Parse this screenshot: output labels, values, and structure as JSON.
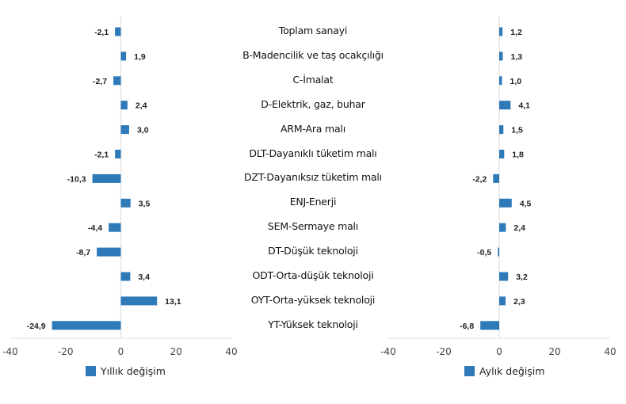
{
  "chart_data": [
    {
      "type": "bar",
      "orientation": "horizontal",
      "title": "",
      "categories": [
        "Toplam sanayi",
        "B-Madencilik ve taş ocakçılığı",
        "C-İmalat",
        "D-Elektrik, gaz, buhar",
        "ARM-Ara malı",
        "DLT-Dayanıklı tüketim malı",
        "DZT-Dayanıksız tüketim malı",
        "ENJ-Enerji",
        "SEM-Sermaye malı",
        "DT-Düşük teknoloji",
        "ODT-Orta-düşük teknoloji",
        "OYT-Orta-yüksek teknoloji",
        "YT-Yüksek teknoloji"
      ],
      "series": [
        {
          "name": "Yıllık değişim",
          "color": "#2e7ab8",
          "values": [
            -2.1,
            1.9,
            -2.7,
            2.4,
            3.0,
            -2.1,
            -10.3,
            3.5,
            -4.4,
            -8.7,
            3.4,
            13.1,
            -24.9
          ],
          "labels": [
            "-2,1",
            "1,9",
            "-2,7",
            "2,4",
            "3,0",
            "-2,1",
            "-10,3",
            "3,5",
            "-4,4",
            "-8,7",
            "3,4",
            "13,1",
            "-24,9"
          ]
        }
      ],
      "xlim": [
        -40,
        40
      ],
      "xticks": [
        "-40",
        "-20",
        "0",
        "20",
        "40"
      ],
      "grid": false,
      "legend": "bottom-center"
    },
    {
      "type": "bar",
      "orientation": "horizontal",
      "title": "",
      "categories": [
        "Toplam sanayi",
        "B-Madencilik ve taş ocakçılığı",
        "C-İmalat",
        "D-Elektrik, gaz, buhar",
        "ARM-Ara malı",
        "DLT-Dayanıklı tüketim malı",
        "DZT-Dayanıksız tüketim malı",
        "ENJ-Enerji",
        "SEM-Sermaye malı",
        "DT-Düşük teknoloji",
        "ODT-Orta-düşük teknoloji",
        "OYT-Orta-yüksek teknoloji",
        "YT-Yüksek teknoloji"
      ],
      "series": [
        {
          "name": "Aylık değişim",
          "color": "#2e7ab8",
          "values": [
            1.2,
            1.3,
            1.0,
            4.1,
            1.5,
            1.8,
            -2.2,
            4.5,
            2.4,
            -0.5,
            3.2,
            2.3,
            -6.8
          ],
          "labels": [
            "1,2",
            "1,3",
            "1,0",
            "4,1",
            "1,5",
            "1,8",
            "-2,2",
            "4,5",
            "2,4",
            "-0,5",
            "3,2",
            "2,3",
            "-6,8"
          ]
        }
      ],
      "xlim": [
        -40,
        40
      ],
      "xticks": [
        "-40",
        "-20",
        "0",
        "20",
        "40"
      ],
      "grid": false,
      "legend": "bottom-center"
    }
  ],
  "legends": {
    "left": "Yıllık değişim",
    "right": "Aylık değişim"
  }
}
